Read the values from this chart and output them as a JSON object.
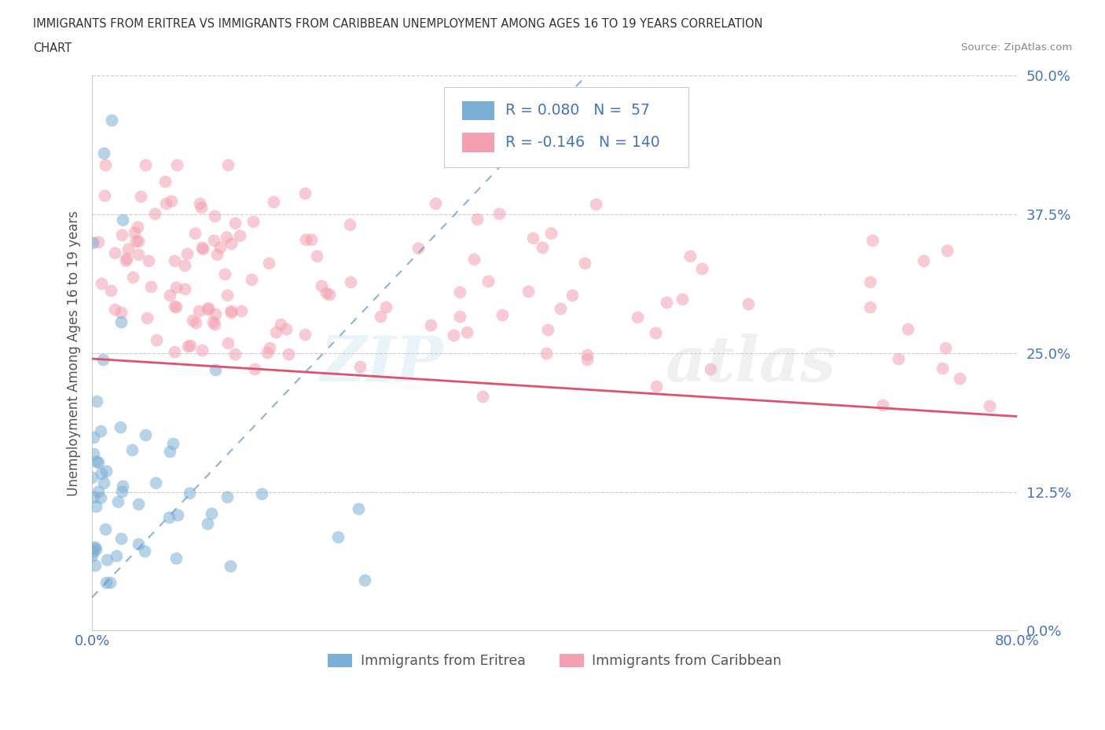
{
  "title_line1": "IMMIGRANTS FROM ERITREA VS IMMIGRANTS FROM CARIBBEAN UNEMPLOYMENT AMONG AGES 16 TO 19 YEARS CORRELATION",
  "title_line2": "CHART",
  "source": "Source: ZipAtlas.com",
  "ylabel": "Unemployment Among Ages 16 to 19 years",
  "xlim": [
    0.0,
    0.8
  ],
  "ylim": [
    0.0,
    0.5
  ],
  "ytick_vals": [
    0.0,
    0.125,
    0.25,
    0.375,
    0.5
  ],
  "ytick_labels": [
    "0.0%",
    "12.5%",
    "25.0%",
    "37.5%",
    "50.0%"
  ],
  "xtick_vals": [
    0.0,
    0.8
  ],
  "xtick_labels": [
    "0.0%",
    "80.0%"
  ],
  "R_eritrea": 0.08,
  "N_eritrea": 57,
  "R_caribbean": -0.146,
  "N_caribbean": 140,
  "color_eritrea": "#7BAFD4",
  "color_caribbean": "#F4A0B0",
  "line_color_eritrea": "#6699CC",
  "line_color_caribbean": "#E05070",
  "tick_color": "#4472C4",
  "background_color": "#FFFFFF",
  "legend_label_eritrea": "Immigrants from Eritrea",
  "legend_label_caribbean": "Immigrants from Caribbean",
  "title_color": "#333333",
  "source_color": "#888888",
  "ylabel_color": "#555555"
}
